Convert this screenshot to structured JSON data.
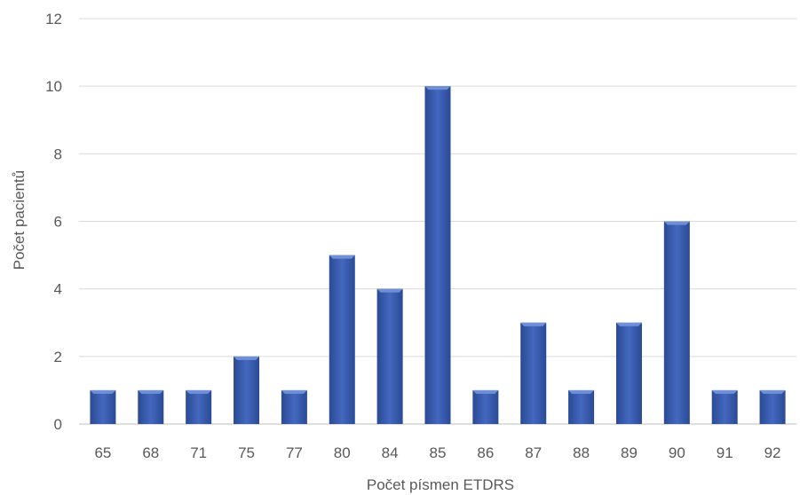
{
  "chart_data": {
    "type": "bar",
    "title": "",
    "xlabel": "Počet písmen ETDRS",
    "ylabel": "Počet pacientů",
    "categories": [
      "65",
      "68",
      "71",
      "75",
      "77",
      "80",
      "84",
      "85",
      "86",
      "87",
      "88",
      "89",
      "90",
      "91",
      "92"
    ],
    "values": [
      1,
      1,
      1,
      2,
      1,
      5,
      4,
      10,
      1,
      3,
      1,
      3,
      6,
      1,
      1
    ],
    "ylim": [
      0,
      12
    ],
    "yticks": [
      "0",
      "2",
      "4",
      "6",
      "8",
      "10",
      "12"
    ],
    "grid": true,
    "legend": "none",
    "colors": {
      "bar": "#3b5fb0",
      "bar_dark": "#2a4a94",
      "bar_light": "#6f8fd6",
      "grid": "#d9d9d9",
      "text": "#595959"
    }
  }
}
